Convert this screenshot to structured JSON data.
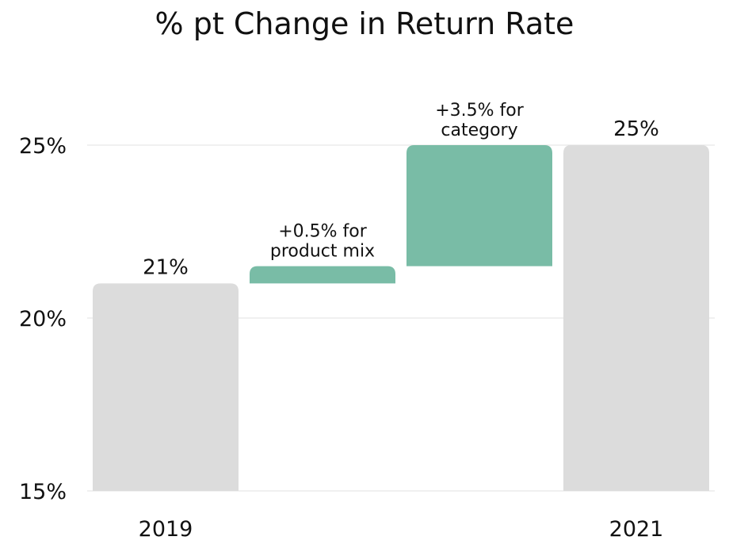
{
  "chart_data": {
    "type": "bar",
    "subtype": "waterfall",
    "title": "% pt Change in Return Rate",
    "xlabel": "",
    "ylabel": "",
    "ylim": [
      15,
      25
    ],
    "yticks": [
      15,
      20,
      25
    ],
    "ytick_labels": [
      "15%",
      "20%",
      "25%"
    ],
    "grid": true,
    "categories": [
      "2019",
      "",
      "",
      "2021"
    ],
    "bars": [
      {
        "category": "2019",
        "kind": "total",
        "start": 15,
        "end": 21,
        "label": "21%",
        "color": "#dcdcdc"
      },
      {
        "category": "",
        "kind": "delta",
        "start": 21,
        "end": 21.5,
        "label_lines": [
          "+0.5% for",
          "product mix"
        ],
        "color": "#79bca6"
      },
      {
        "category": "",
        "kind": "delta",
        "start": 21.5,
        "end": 25,
        "label_lines": [
          "+3.5% for",
          "category"
        ],
        "color": "#79bca6"
      },
      {
        "category": "2021",
        "kind": "total",
        "start": 15,
        "end": 25,
        "label": "25%",
        "color": "#dcdcdc"
      }
    ]
  }
}
